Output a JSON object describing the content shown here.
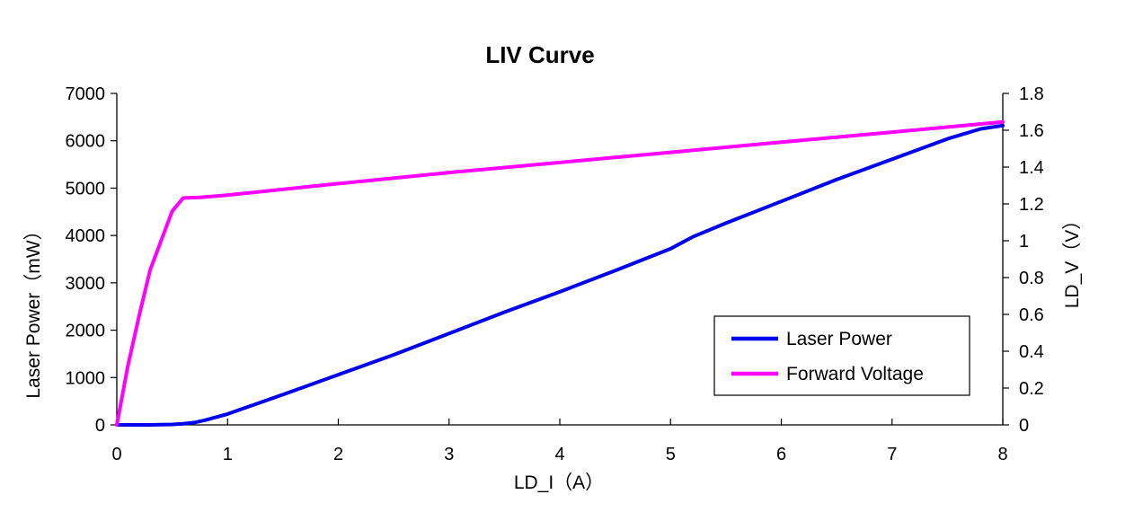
{
  "chart_data": {
    "type": "line",
    "title": "LIV Curve",
    "xlabel": "LD_I（A）",
    "ylabel_left": "Laser Power（mW）",
    "ylabel_right": "LD_V（V）",
    "xlim": [
      0,
      8
    ],
    "ylim_left": [
      0,
      7000
    ],
    "ylim_right": [
      0,
      1.8
    ],
    "x_ticks": [
      "0",
      "1",
      "2",
      "3",
      "4",
      "5",
      "6",
      "7",
      "8"
    ],
    "y_left_ticks": [
      "0",
      "1000",
      "2000",
      "3000",
      "4000",
      "5000",
      "6000",
      "7000"
    ],
    "y_right_ticks": [
      "0",
      "0.2",
      "0.4",
      "0.6",
      "0.8",
      "1",
      "1.2",
      "1.4",
      "1.6",
      "1.8"
    ],
    "grid": false,
    "legend_position": "bottom-right",
    "series": [
      {
        "name": "Laser Power",
        "axis": "left",
        "color": "#0000ee",
        "x": [
          0,
          0.3,
          0.5,
          0.6,
          0.7,
          0.8,
          1.0,
          1.5,
          2.0,
          2.5,
          3.0,
          3.5,
          4.0,
          4.5,
          5.0,
          5.2,
          5.5,
          6.0,
          6.5,
          7.0,
          7.5,
          7.8,
          8.0
        ],
        "y": [
          0,
          0,
          10,
          25,
          50,
          100,
          230,
          640,
          1060,
          1480,
          1930,
          2380,
          2810,
          3260,
          3720,
          3970,
          4260,
          4720,
          5180,
          5610,
          6040,
          6250,
          6320
        ]
      },
      {
        "name": "Forward Voltage",
        "axis": "right",
        "color": "#ff00ff",
        "x": [
          0,
          0.1,
          0.2,
          0.3,
          0.4,
          0.5,
          0.6,
          0.75,
          1.0,
          2.0,
          3.0,
          4.0,
          5.0,
          6.0,
          7.0,
          8.0
        ],
        "y": [
          0,
          0.32,
          0.59,
          0.84,
          1.0,
          1.16,
          1.232,
          1.235,
          1.248,
          1.31,
          1.37,
          1.425,
          1.48,
          1.535,
          1.59,
          1.645
        ]
      }
    ]
  }
}
